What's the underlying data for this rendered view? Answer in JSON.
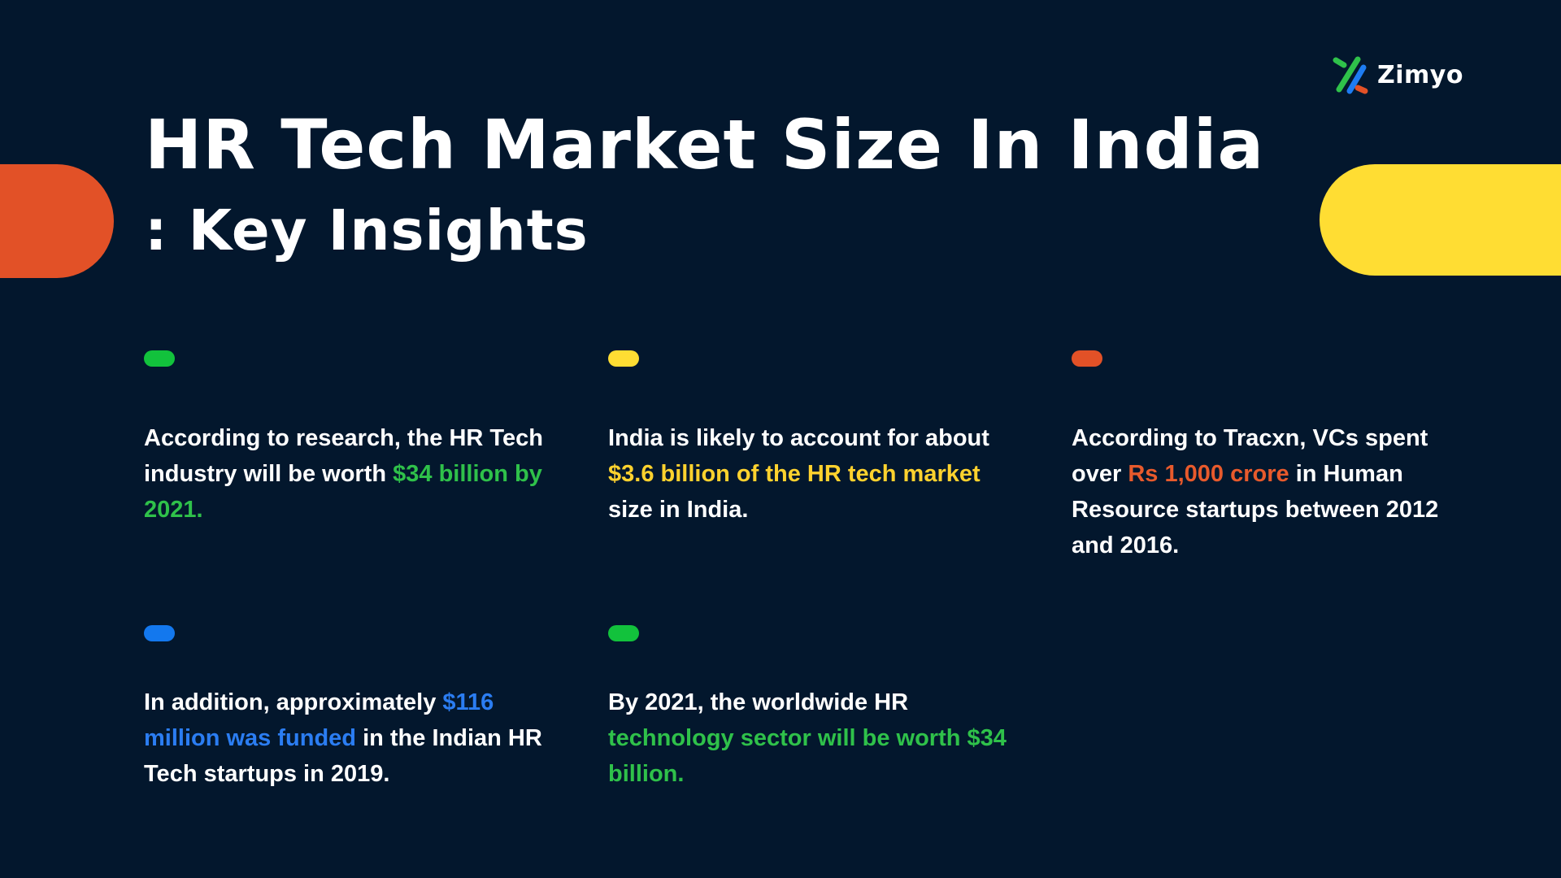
{
  "brand": {
    "name": "Zimyo",
    "logo_colors": [
      "#2fc14a",
      "#1e7cf2",
      "#e25127"
    ]
  },
  "title": {
    "line1": "HR Tech Market Size In India",
    "line2": ": Key Insights"
  },
  "colors": {
    "background": "#03172d",
    "green": "#2fc14a",
    "yellow": "#ffdd33",
    "orange": "#e25127",
    "blue": "#1e7cf2"
  },
  "insights": [
    {
      "accent": "#12c23c",
      "before": "According to research, the HR Tech industry will be worth ",
      "highlight": "$34 billion by 2021.",
      "highlight_color": "#2fc14a",
      "after": ""
    },
    {
      "accent": "#ffdd33",
      "before": "India is likely to account for about ",
      "highlight": "$3.6 billion of the HR tech market",
      "highlight_color": "#ffd22e",
      "after": " size in India."
    },
    {
      "accent": "#e25127",
      "before": "According to Tracxn, VCs spent over ",
      "highlight": "Rs 1,000 crore",
      "highlight_color": "#e85a2c",
      "after": " in Human Resource startups between 2012 and 2016."
    },
    {
      "accent": "#1378ee",
      "before": "In addition, approximately ",
      "highlight": "$116 million was funded",
      "highlight_color": "#2b7df2",
      "after": " in the Indian HR Tech startups in 2019."
    },
    {
      "accent": "#12c23c",
      "before": "By 2021, the worldwide HR ",
      "highlight": "technology sector will be worth $34 billion.",
      "highlight_color": "#2fc14a",
      "after": ""
    }
  ]
}
